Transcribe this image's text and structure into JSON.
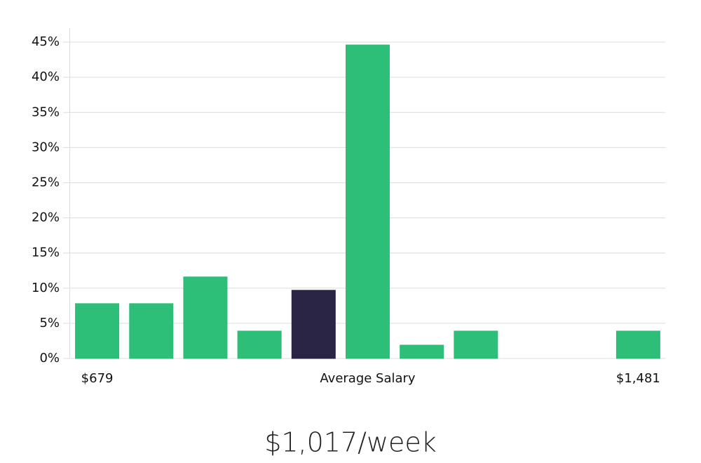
{
  "chart_data": {
    "type": "bar",
    "categories": [
      "$679",
      null,
      null,
      null,
      null,
      "Average Salary",
      null,
      null,
      null,
      null,
      "$1,481"
    ],
    "values": [
      7.8,
      7.8,
      11.6,
      3.9,
      9.7,
      44.6,
      1.9,
      3.9,
      0,
      0,
      3.9
    ],
    "colors": [
      "#2dbe78",
      "#2dbe78",
      "#2dbe78",
      "#2dbe78",
      "#2a2545",
      "#2dbe78",
      "#2dbe78",
      "#2dbe78",
      "#2dbe78",
      "#2dbe78",
      "#2dbe78"
    ],
    "ylim": [
      0,
      47
    ],
    "yticks": [
      {
        "value": 0,
        "label": "0%"
      },
      {
        "value": 5,
        "label": "5%"
      },
      {
        "value": 10,
        "label": "10%"
      },
      {
        "value": 15,
        "label": "15%"
      },
      {
        "value": 20,
        "label": "20%"
      },
      {
        "value": 25,
        "label": "25%"
      },
      {
        "value": 30,
        "label": "30%"
      },
      {
        "value": 35,
        "label": "35%"
      },
      {
        "value": 40,
        "label": "40%"
      },
      {
        "value": 45,
        "label": "45%"
      }
    ],
    "grid": true,
    "footer": "$1,017/week"
  }
}
